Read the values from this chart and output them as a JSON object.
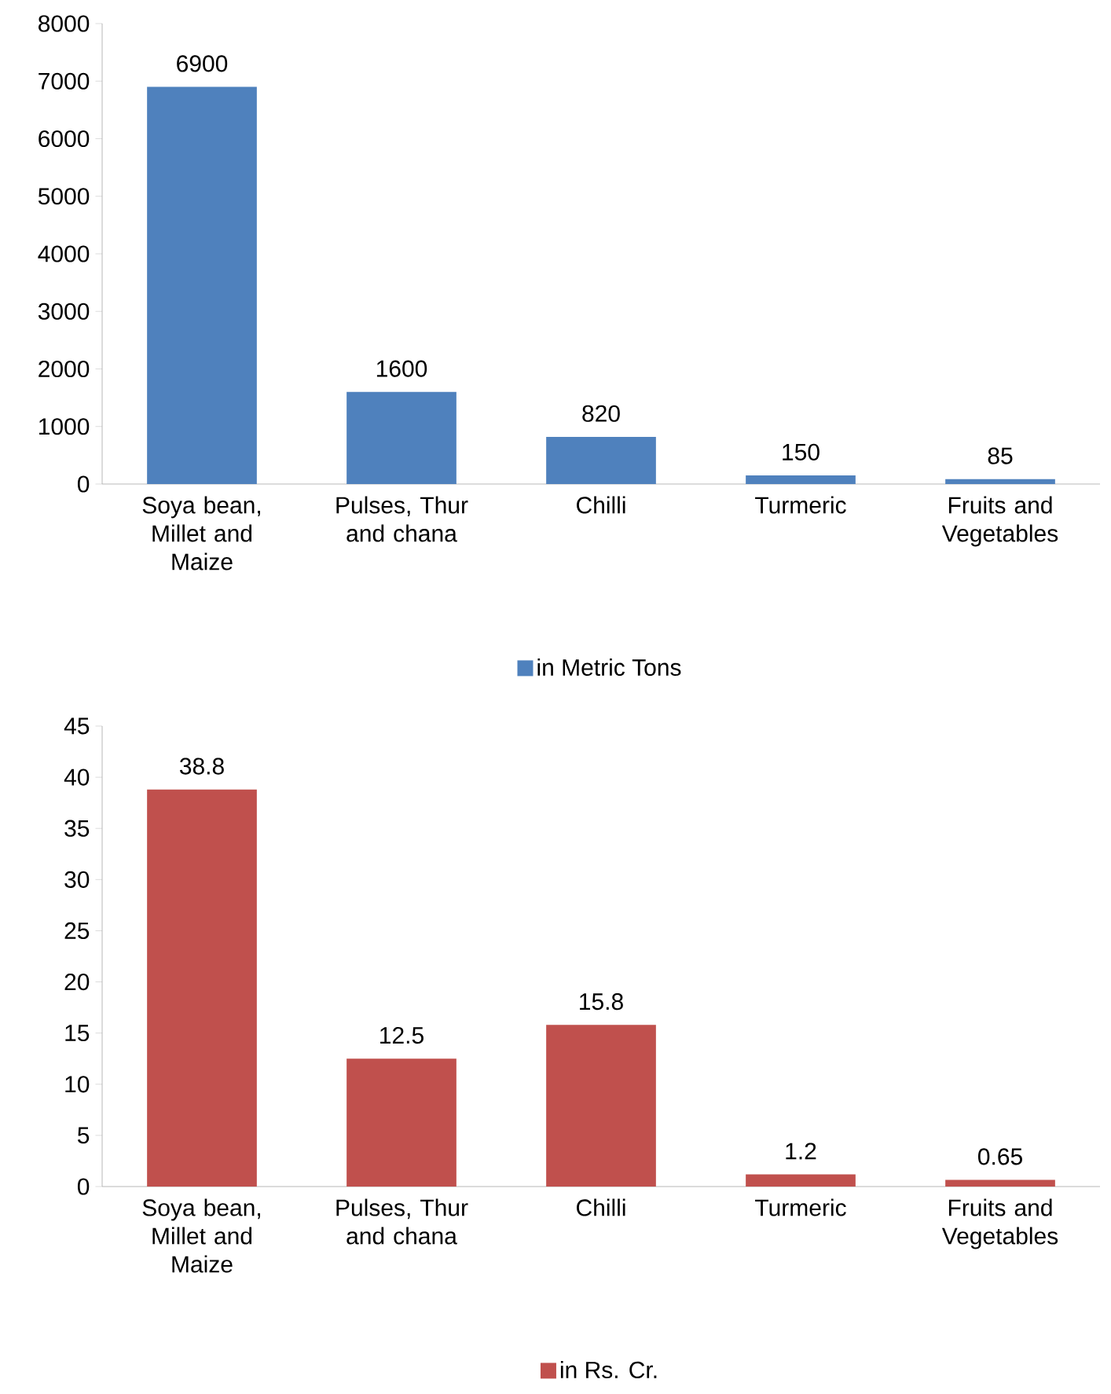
{
  "chart_data": [
    {
      "type": "bar",
      "categories": [
        "Soya bean, Millet and Maize",
        "Pulses, Thur and chana",
        "Chilli",
        "Turmeric",
        "Fruits and Vegetables"
      ],
      "series": [
        {
          "name": "in Metric Tons",
          "color": "#4f81bd",
          "values": [
            6900,
            1600,
            820,
            150,
            85
          ]
        }
      ],
      "ylim": [
        0,
        8000
      ],
      "yticks": [
        0,
        1000,
        2000,
        3000,
        4000,
        5000,
        6000,
        7000,
        8000
      ],
      "data_labels": true,
      "legend": "bottom"
    },
    {
      "type": "bar",
      "categories": [
        "Soya bean, Millet and Maize",
        "Pulses, Thur and chana",
        "Chilli",
        "Turmeric",
        "Fruits and Vegetables"
      ],
      "series": [
        {
          "name": "in Rs. Cr.",
          "color": "#c0504d",
          "values": [
            38.8,
            12.5,
            15.8,
            1.2,
            0.65
          ]
        }
      ],
      "ylim": [
        0,
        45
      ],
      "yticks": [
        0,
        5,
        10,
        15,
        20,
        25,
        30,
        35,
        40,
        45
      ],
      "data_labels": true,
      "legend": "bottom"
    }
  ]
}
